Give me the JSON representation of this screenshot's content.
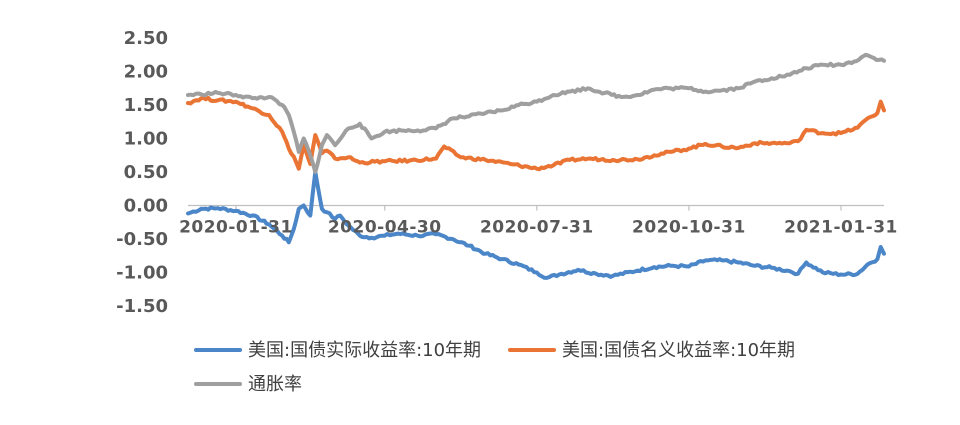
{
  "chart_data": {
    "type": "line",
    "x_range": [
      "2020-01-02",
      "2021-02-26"
    ],
    "ylim": [
      -1.5,
      2.5
    ],
    "yticks": [
      "2.50",
      "2.00",
      "1.50",
      "1.00",
      "0.50",
      "0.00",
      "-0.50",
      "-1.00",
      "-1.50"
    ],
    "xticks": [
      {
        "date": "2020-01-31",
        "label": "2020-01-31"
      },
      {
        "date": "2020-04-30",
        "label": "2020-04-30"
      },
      {
        "date": "2020-07-31",
        "label": "2020-07-31"
      },
      {
        "date": "2020-10-31",
        "label": "2020-10-31"
      },
      {
        "date": "2021-01-31",
        "label": "2021-01-31"
      }
    ],
    "grid": false,
    "legend_position": "bottom",
    "series": [
      {
        "name": "美国:国债实际收益率:10年期",
        "color": "#4a86c8",
        "points": [
          [
            "2020-01-02",
            -0.12
          ],
          [
            "2020-01-10",
            -0.05
          ],
          [
            "2020-01-20",
            -0.04
          ],
          [
            "2020-01-31",
            -0.08
          ],
          [
            "2020-02-10",
            -0.15
          ],
          [
            "2020-02-20",
            -0.28
          ],
          [
            "2020-02-28",
            -0.45
          ],
          [
            "2020-03-03",
            -0.55
          ],
          [
            "2020-03-06",
            -0.35
          ],
          [
            "2020-03-09",
            -0.05
          ],
          [
            "2020-03-12",
            0.0
          ],
          [
            "2020-03-16",
            -0.15
          ],
          [
            "2020-03-19",
            0.5
          ],
          [
            "2020-03-23",
            -0.05
          ],
          [
            "2020-03-26",
            -0.1
          ],
          [
            "2020-03-31",
            -0.2
          ],
          [
            "2020-04-03",
            -0.15
          ],
          [
            "2020-04-08",
            -0.3
          ],
          [
            "2020-04-15",
            -0.45
          ],
          [
            "2020-04-22",
            -0.48
          ],
          [
            "2020-04-30",
            -0.45
          ],
          [
            "2020-05-08",
            -0.42
          ],
          [
            "2020-05-20",
            -0.45
          ],
          [
            "2020-05-31",
            -0.43
          ],
          [
            "2020-06-10",
            -0.5
          ],
          [
            "2020-06-20",
            -0.6
          ],
          [
            "2020-06-30",
            -0.72
          ],
          [
            "2020-07-10",
            -0.8
          ],
          [
            "2020-07-20",
            -0.88
          ],
          [
            "2020-07-31",
            -1.0
          ],
          [
            "2020-08-06",
            -1.08
          ],
          [
            "2020-08-15",
            -1.02
          ],
          [
            "2020-08-25",
            -0.96
          ],
          [
            "2020-09-05",
            -1.02
          ],
          [
            "2020-09-15",
            -1.05
          ],
          [
            "2020-09-30",
            -0.97
          ],
          [
            "2020-10-10",
            -0.92
          ],
          [
            "2020-10-20",
            -0.9
          ],
          [
            "2020-10-31",
            -0.91
          ],
          [
            "2020-11-10",
            -0.82
          ],
          [
            "2020-11-20",
            -0.82
          ],
          [
            "2020-11-30",
            -0.85
          ],
          [
            "2020-12-10",
            -0.9
          ],
          [
            "2020-12-20",
            -0.93
          ],
          [
            "2020-12-31",
            -0.98
          ],
          [
            "2021-01-05",
            -1.02
          ],
          [
            "2021-01-10",
            -0.85
          ],
          [
            "2021-01-20",
            -1.0
          ],
          [
            "2021-01-31",
            -1.03
          ],
          [
            "2021-02-10",
            -1.02
          ],
          [
            "2021-02-16",
            -0.88
          ],
          [
            "2021-02-22",
            -0.8
          ],
          [
            "2021-02-24",
            -0.62
          ],
          [
            "2021-02-26",
            -0.72
          ]
        ]
      },
      {
        "name": "美国:国债名义收益率:10年期",
        "color": "#ea7433",
        "points": [
          [
            "2020-01-02",
            1.53
          ],
          [
            "2020-01-10",
            1.6
          ],
          [
            "2020-01-20",
            1.57
          ],
          [
            "2020-01-31",
            1.55
          ],
          [
            "2020-02-10",
            1.45
          ],
          [
            "2020-02-20",
            1.35
          ],
          [
            "2020-02-28",
            1.1
          ],
          [
            "2020-03-03",
            0.85
          ],
          [
            "2020-03-06",
            0.73
          ],
          [
            "2020-03-09",
            0.55
          ],
          [
            "2020-03-12",
            0.9
          ],
          [
            "2020-03-16",
            0.62
          ],
          [
            "2020-03-19",
            1.05
          ],
          [
            "2020-03-23",
            0.78
          ],
          [
            "2020-03-26",
            0.82
          ],
          [
            "2020-03-31",
            0.7
          ],
          [
            "2020-04-08",
            0.72
          ],
          [
            "2020-04-15",
            0.64
          ],
          [
            "2020-04-30",
            0.66
          ],
          [
            "2020-05-15",
            0.67
          ],
          [
            "2020-05-31",
            0.7
          ],
          [
            "2020-06-05",
            0.88
          ],
          [
            "2020-06-15",
            0.72
          ],
          [
            "2020-06-30",
            0.68
          ],
          [
            "2020-07-15",
            0.62
          ],
          [
            "2020-07-31",
            0.55
          ],
          [
            "2020-08-10",
            0.6
          ],
          [
            "2020-08-20",
            0.68
          ],
          [
            "2020-08-31",
            0.7
          ],
          [
            "2020-09-15",
            0.68
          ],
          [
            "2020-09-30",
            0.69
          ],
          [
            "2020-10-10",
            0.75
          ],
          [
            "2020-10-20",
            0.8
          ],
          [
            "2020-10-31",
            0.85
          ],
          [
            "2020-11-10",
            0.92
          ],
          [
            "2020-11-20",
            0.88
          ],
          [
            "2020-11-30",
            0.86
          ],
          [
            "2020-12-10",
            0.93
          ],
          [
            "2020-12-20",
            0.93
          ],
          [
            "2020-12-31",
            0.93
          ],
          [
            "2021-01-05",
            0.96
          ],
          [
            "2021-01-10",
            1.13
          ],
          [
            "2021-01-20",
            1.08
          ],
          [
            "2021-01-31",
            1.08
          ],
          [
            "2021-02-10",
            1.16
          ],
          [
            "2021-02-16",
            1.3
          ],
          [
            "2021-02-22",
            1.38
          ],
          [
            "2021-02-24",
            1.55
          ],
          [
            "2021-02-26",
            1.42
          ]
        ]
      },
      {
        "name": "通胀率",
        "color": "#9f9f9f",
        "points": [
          [
            "2020-01-02",
            1.65
          ],
          [
            "2020-01-10",
            1.66
          ],
          [
            "2020-01-20",
            1.68
          ],
          [
            "2020-01-31",
            1.65
          ],
          [
            "2020-02-10",
            1.6
          ],
          [
            "2020-02-20",
            1.62
          ],
          [
            "2020-02-28",
            1.5
          ],
          [
            "2020-03-03",
            1.35
          ],
          [
            "2020-03-06",
            1.1
          ],
          [
            "2020-03-09",
            0.8
          ],
          [
            "2020-03-12",
            1.0
          ],
          [
            "2020-03-16",
            0.75
          ],
          [
            "2020-03-19",
            0.5
          ],
          [
            "2020-03-23",
            0.9
          ],
          [
            "2020-03-26",
            1.05
          ],
          [
            "2020-03-31",
            0.9
          ],
          [
            "2020-04-08",
            1.15
          ],
          [
            "2020-04-15",
            1.22
          ],
          [
            "2020-04-22",
            1.0
          ],
          [
            "2020-04-30",
            1.1
          ],
          [
            "2020-05-10",
            1.12
          ],
          [
            "2020-05-20",
            1.12
          ],
          [
            "2020-05-31",
            1.15
          ],
          [
            "2020-06-10",
            1.3
          ],
          [
            "2020-06-20",
            1.33
          ],
          [
            "2020-06-30",
            1.38
          ],
          [
            "2020-07-10",
            1.42
          ],
          [
            "2020-07-20",
            1.5
          ],
          [
            "2020-07-31",
            1.55
          ],
          [
            "2020-08-10",
            1.65
          ],
          [
            "2020-08-20",
            1.7
          ],
          [
            "2020-08-31",
            1.75
          ],
          [
            "2020-09-10",
            1.68
          ],
          [
            "2020-09-20",
            1.62
          ],
          [
            "2020-09-30",
            1.65
          ],
          [
            "2020-10-10",
            1.73
          ],
          [
            "2020-10-20",
            1.75
          ],
          [
            "2020-10-31",
            1.75
          ],
          [
            "2020-11-10",
            1.7
          ],
          [
            "2020-11-20",
            1.72
          ],
          [
            "2020-11-30",
            1.75
          ],
          [
            "2020-12-10",
            1.85
          ],
          [
            "2020-12-20",
            1.9
          ],
          [
            "2020-12-31",
            1.95
          ],
          [
            "2021-01-10",
            2.05
          ],
          [
            "2021-01-20",
            2.1
          ],
          [
            "2021-01-31",
            2.1
          ],
          [
            "2021-02-08",
            2.15
          ],
          [
            "2021-02-15",
            2.25
          ],
          [
            "2021-02-20",
            2.2
          ],
          [
            "2021-02-26",
            2.16
          ]
        ]
      }
    ]
  }
}
